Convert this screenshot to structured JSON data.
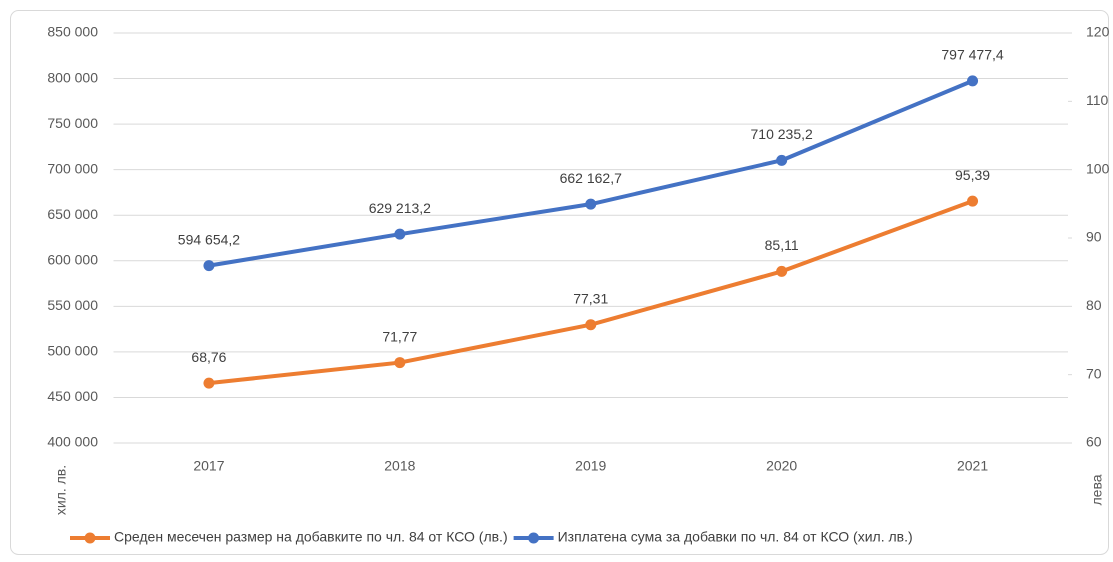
{
  "chart_data": {
    "type": "line",
    "categories": [
      "2017",
      "2018",
      "2019",
      "2020",
      "2021"
    ],
    "series": [
      {
        "name": "Среден месечен размер на добавките по чл. 84 от КСО (лв.)",
        "color": "#ed7d31",
        "axis": "y2",
        "values": [
          68.76,
          71.77,
          77.31,
          85.11,
          95.39
        ],
        "value_labels": [
          "68,76",
          "71,77",
          "77,31",
          "85,11",
          "95,39"
        ]
      },
      {
        "name": "Изплатена сума за добавки по чл. 84 от КСО (хил. лв.)",
        "color": "#4472c4",
        "axis": "y",
        "values": [
          594654.2,
          629213.2,
          662162.7,
          710235.2,
          797477.4
        ],
        "value_labels": [
          "594 654,2",
          "629 213,2",
          "662 162,7",
          "710 235,2",
          "797 477,4"
        ]
      }
    ],
    "ylabel": "хил. лв.",
    "y2label": "лева",
    "ylim": [
      400000,
      850000
    ],
    "yticks": [
      {
        "value": 400000,
        "label": "400 000"
      },
      {
        "value": 450000,
        "label": "450 000"
      },
      {
        "value": 500000,
        "label": "500 000"
      },
      {
        "value": 550000,
        "label": "550 000"
      },
      {
        "value": 600000,
        "label": "600 000"
      },
      {
        "value": 650000,
        "label": "650 000"
      },
      {
        "value": 700000,
        "label": "700 000"
      },
      {
        "value": 750000,
        "label": "750 000"
      },
      {
        "value": 800000,
        "label": "800 000"
      },
      {
        "value": 850000,
        "label": "850 000"
      }
    ],
    "y2lim": [
      60,
      120
    ],
    "y2ticks": [
      60,
      70,
      80,
      90,
      100,
      110,
      120
    ],
    "grid": true,
    "legend": "bottom"
  }
}
